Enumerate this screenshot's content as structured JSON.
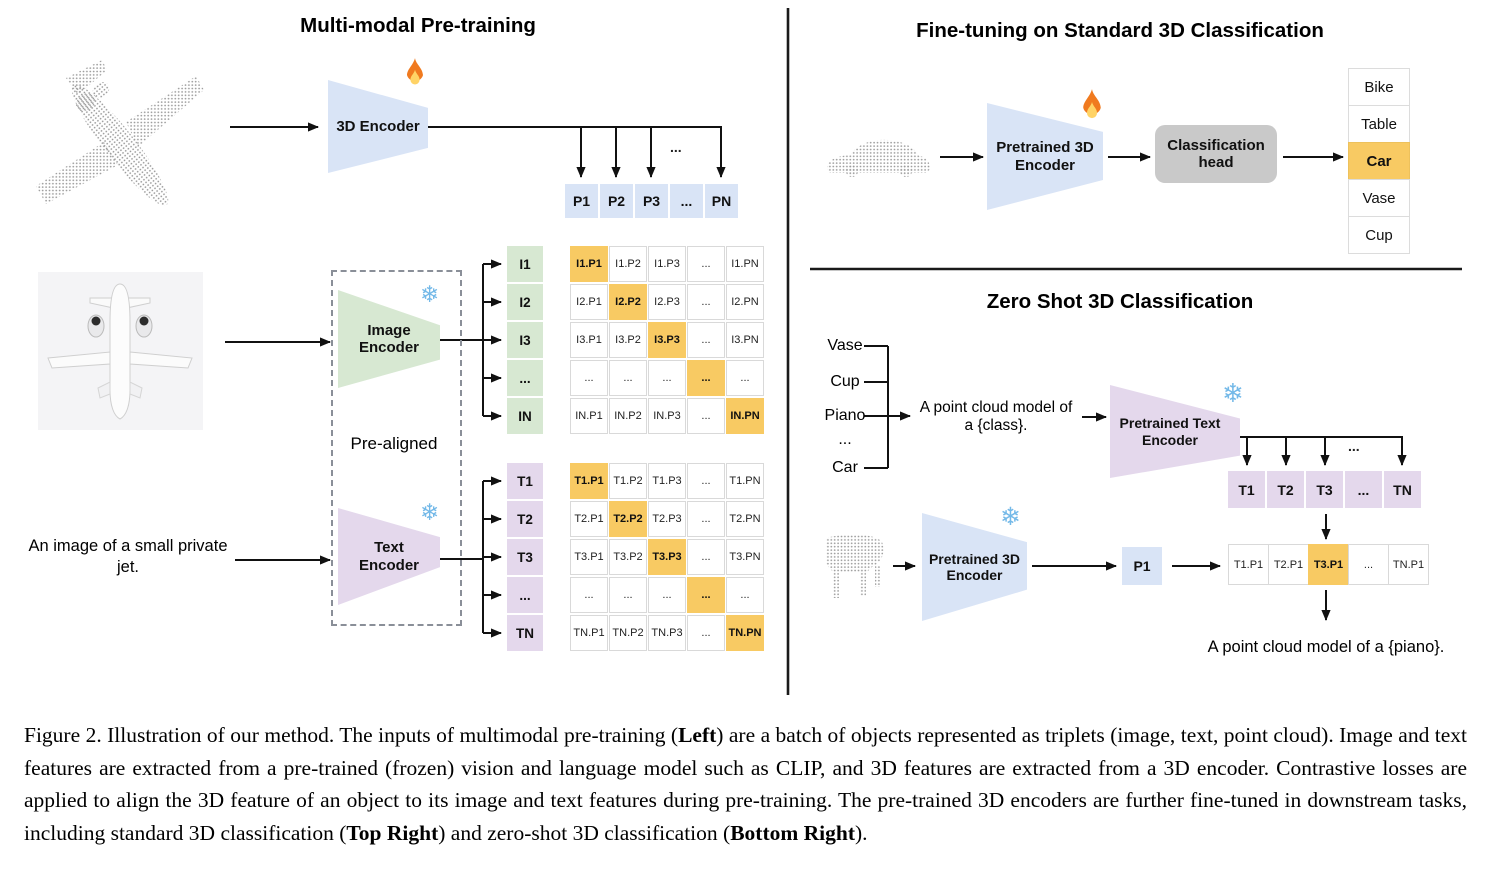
{
  "colors": {
    "blue": "#d9e4f6",
    "green": "#d7e8d2",
    "purple": "#e4d8ec",
    "highlight_orange": "#f8ca63",
    "head_gray": "#c9c9c9"
  },
  "icons": {
    "snowflake": "❄",
    "fire": "flame"
  },
  "pretraining": {
    "title": "Multi-modal Pre-training",
    "encoder_3d_label": "3D Encoder",
    "image_encoder_label": "Image Encoder",
    "text_encoder_label": "Text Encoder",
    "prealigned_label": "Pre-aligned",
    "text_input": "An image of a small private jet.",
    "ellipsis": "...",
    "p_row": [
      "P1",
      "P2",
      "P3",
      "...",
      "PN"
    ],
    "image_matrix": {
      "row_labels": [
        "I1",
        "I2",
        "I3",
        "...",
        "IN"
      ],
      "cells": [
        [
          "I1.P1",
          "I1.P2",
          "I1.P3",
          "...",
          "I1.PN"
        ],
        [
          "I2.P1",
          "I2.P2",
          "I2.P3",
          "...",
          "I2.PN"
        ],
        [
          "I3.P1",
          "I3.P2",
          "I3.P3",
          "...",
          "I3.PN"
        ],
        [
          "...",
          "...",
          "...",
          "...",
          "..."
        ],
        [
          "IN.P1",
          "IN.P2",
          "IN.P3",
          "...",
          "IN.PN"
        ]
      ]
    },
    "text_matrix": {
      "row_labels": [
        "T1",
        "T2",
        "T3",
        "...",
        "TN"
      ],
      "cells": [
        [
          "T1.P1",
          "T1.P2",
          "T1.P3",
          "...",
          "T1.PN"
        ],
        [
          "T2.P1",
          "T2.P2",
          "T2.P3",
          "...",
          "T2.PN"
        ],
        [
          "T3.P1",
          "T3.P2",
          "T3.P3",
          "...",
          "T3.PN"
        ],
        [
          "...",
          "...",
          "...",
          "...",
          "..."
        ],
        [
          "TN.P1",
          "TN.P2",
          "TN.P3",
          "...",
          "TN.PN"
        ]
      ]
    }
  },
  "finetune": {
    "title": "Fine-tuning on Standard 3D Classification",
    "encoder_label": "Pretrained 3D Encoder",
    "head_label": "Classification head",
    "classes": [
      "Bike",
      "Table",
      "Car",
      "Vase",
      "Cup"
    ],
    "highlight_index": 2
  },
  "zeroshot": {
    "title": "Zero Shot 3D Classification",
    "classes": [
      "Vase",
      "Cup",
      "Piano",
      "...",
      "Car"
    ],
    "prompt": "A point cloud model of a {class}.",
    "text_encoder_label": "Pretrained Text Encoder",
    "encoder_label": "Pretrained 3D Encoder",
    "ellipsis": "...",
    "t_row": [
      "T1",
      "T2",
      "T3",
      "...",
      "TN"
    ],
    "p_cell": "P1",
    "result_row": [
      "T1.P1",
      "T2.P1",
      "T3.P1",
      "...",
      "TN.P1"
    ],
    "result_highlight_index": 2,
    "result_caption": "A point cloud model of a {piano}."
  },
  "caption": {
    "segments": [
      {
        "text": "Figure 2. Illustration of our method. The inputs of multimodal pre-training (",
        "bold": false
      },
      {
        "text": "Left",
        "bold": true
      },
      {
        "text": ") are a batch of objects represented as triplets (image, text, point cloud). Image and text features are extracted from a pre-trained (frozen) vision and language model such as CLIP, and 3D features are extracted from a 3D encoder. Contrastive losses are applied to align the 3D feature of an object to its image and text features during pre-training. The pre-trained 3D encoders are further fine-tuned in downstream tasks, including standard 3D classification (",
        "bold": false
      },
      {
        "text": "Top Right",
        "bold": true
      },
      {
        "text": ") and zero-shot 3D classification (",
        "bold": false
      },
      {
        "text": "Bottom Right",
        "bold": true
      },
      {
        "text": ").",
        "bold": false
      }
    ]
  }
}
